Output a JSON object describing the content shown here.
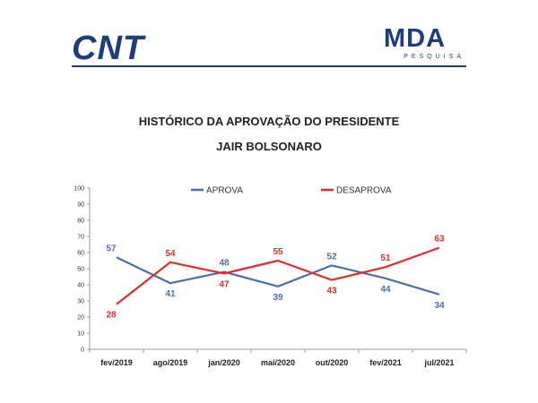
{
  "header": {
    "left_logo": "CNT",
    "right_logo_main": "MDA",
    "right_logo_sub": "PESQUISA"
  },
  "chart_data": {
    "type": "line",
    "title_line1": "HISTÓRICO DA APROVAÇÃO DO PRESIDENTE",
    "title_line2": "JAIR BOLSONARO",
    "categories": [
      "fev/2019",
      "ago/2019",
      "jan/2020",
      "mai/2020",
      "out/2020",
      "fev/2021",
      "jul/2021"
    ],
    "series": [
      {
        "name": "APROVA",
        "color": "#4a6fa5",
        "values": [
          57,
          41,
          48,
          39,
          52,
          44,
          34
        ]
      },
      {
        "name": "DESAPROVA",
        "color": "#e02b2b",
        "values": [
          28,
          54,
          47,
          55,
          43,
          51,
          63
        ]
      }
    ],
    "ylim": [
      0,
      100
    ],
    "yticks": [
      0,
      10,
      20,
      30,
      40,
      50,
      60,
      70,
      80,
      90,
      100
    ],
    "grid": false,
    "legend_position": "top"
  }
}
